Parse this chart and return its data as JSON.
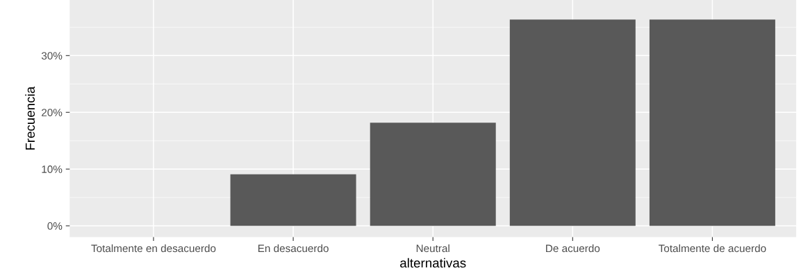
{
  "chart_data": {
    "type": "bar",
    "xlabel": "alternativas",
    "ylabel": "Frecuencia",
    "categories": [
      "Totalmente en desacuerdo",
      "En desacuerdo",
      "Neutral",
      "De acuerdo",
      "Totalmente de acuerdo"
    ],
    "values": [
      0,
      9.09,
      18.18,
      36.36,
      36.36
    ],
    "color": "#595959",
    "ylim": [
      -2,
      39.8
    ],
    "yticks": [
      {
        "value": 0,
        "label": "0%"
      },
      {
        "value": 10,
        "label": "10%"
      },
      {
        "value": 20,
        "label": "20%"
      },
      {
        "value": 30,
        "label": "30%"
      }
    ],
    "grid": true
  }
}
